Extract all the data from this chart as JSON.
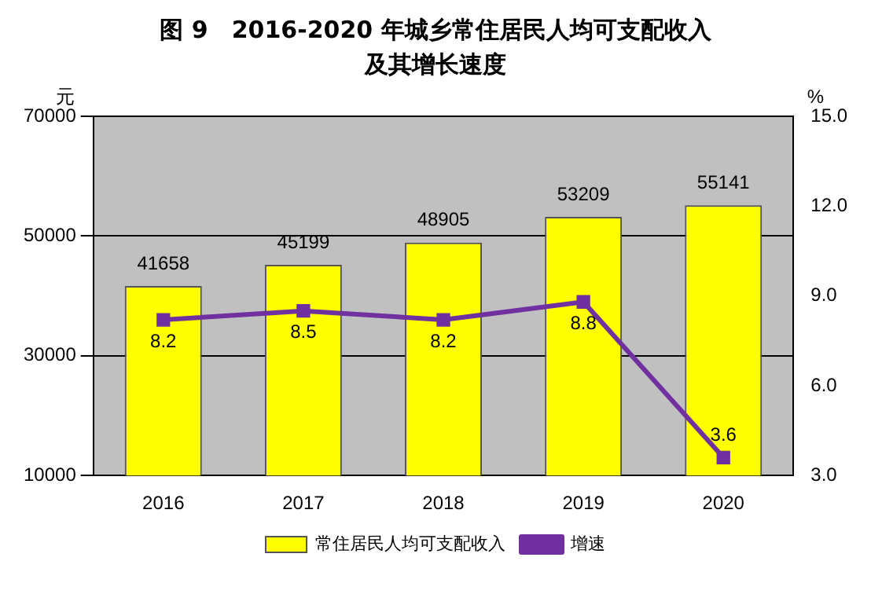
{
  "chart_data": {
    "type": "bar",
    "title": "图 9　2016-2020 年城乡常住居民人均可支配收入",
    "subtitle": "及其增长速度",
    "ylabel": "元",
    "y2label": "%",
    "categories": [
      "2016",
      "2017",
      "2018",
      "2019",
      "2020"
    ],
    "series": [
      {
        "name": "常住居民人均可支配收入",
        "color": "#ffff00",
        "values": [
          41658,
          45199,
          48905,
          53209,
          55141
        ]
      },
      {
        "name": "增速",
        "type": "line",
        "axis": "y2",
        "color": "#7030a0",
        "values": [
          8.2,
          8.5,
          8.2,
          8.8,
          3.6
        ]
      }
    ],
    "ylim": [
      10000,
      70000
    ],
    "yticks": [
      10000,
      30000,
      50000,
      70000
    ],
    "y2lim": [
      3,
      15
    ],
    "y2ticks": [
      {
        "value": 3,
        "label": "3.0"
      },
      {
        "value": 6,
        "label": "6.0"
      },
      {
        "value": 9,
        "label": "9.0"
      },
      {
        "value": 12,
        "label": "12.0"
      },
      {
        "value": 15,
        "label": "15.0"
      }
    ],
    "grid": "y",
    "legend": "bottom",
    "marker": "square",
    "data_labels": true
  }
}
